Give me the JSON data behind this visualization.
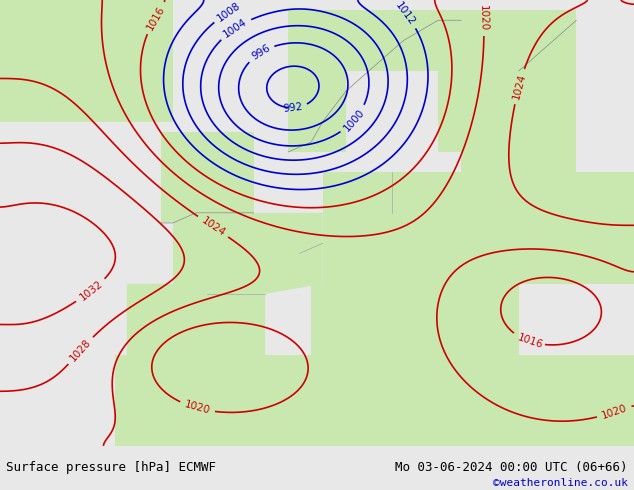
{
  "title_left": "Surface pressure [hPa] ECMWF",
  "title_right": "Mo 03-06-2024 00:00 UTC (06+66)",
  "copyright": "©weatheronline.co.uk",
  "bg_color": "#d8d8d8",
  "land_color": "#c8e8b0",
  "sea_color": "#e8e8e8",
  "footer_bg": "#ffffff",
  "footer_text_color": "#000000",
  "copyright_color": "#0000cc",
  "red_isobar_color": "#cc0000",
  "blue_isobar_color": "#0000cc",
  "black_isobar_color": "#000000",
  "isobar_linewidth": 1.2,
  "label_fontsize": 7.5
}
